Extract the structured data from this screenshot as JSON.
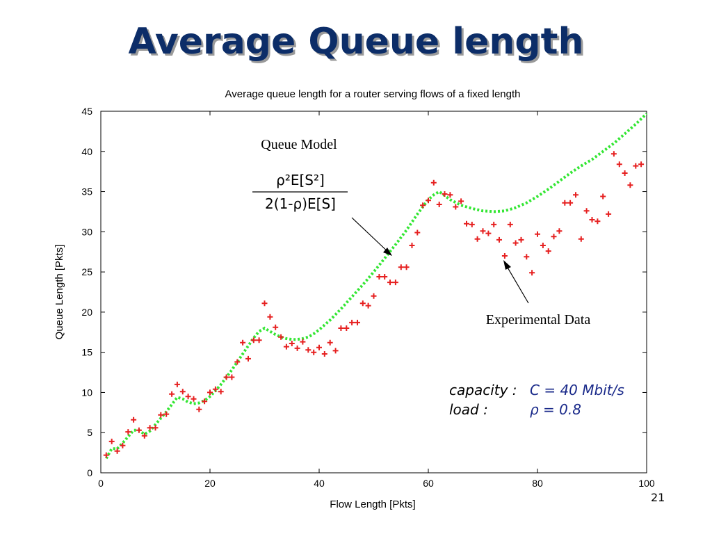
{
  "slide": {
    "title": "Average Queue length",
    "page_number": "21"
  },
  "annotations": {
    "model_label": "Queue Model",
    "formula_numerator": "ρ²E[S²]",
    "formula_denominator": "2(1-ρ)E[S]",
    "data_label": "Experimental Data",
    "capacity_label": "capacity :",
    "capacity_value": "C = 40 Mbit/s",
    "load_label": "load :",
    "load_value": "ρ = 0.8"
  },
  "colors": {
    "title": "#0c2d68",
    "model_line": "#33e633",
    "data_points": "#e62020",
    "math_value": "#1a2a8a"
  },
  "chart_data": {
    "type": "scatter",
    "title": "Average queue length for a router serving flows of a fixed length",
    "xlabel": "Flow Length [Pkts]",
    "ylabel": "Queue Length [Pkts]",
    "xlim": [
      0,
      100
    ],
    "ylim": [
      0,
      45
    ],
    "xticks": [
      0,
      20,
      40,
      60,
      80,
      100
    ],
    "yticks": [
      0,
      5,
      10,
      15,
      20,
      25,
      30,
      35,
      40,
      45
    ],
    "grid": false,
    "series": [
      {
        "style": "dotted-line",
        "x": [
          1,
          2,
          3,
          4,
          5,
          6,
          7,
          8,
          9,
          10,
          11,
          12,
          13,
          14,
          15,
          16,
          17,
          18,
          19,
          20,
          21,
          22,
          23,
          24,
          25,
          26,
          27,
          28,
          29,
          30,
          31,
          32,
          33,
          34,
          35,
          36,
          37,
          38,
          39,
          40,
          42,
          44,
          46,
          48,
          50,
          52,
          54,
          56,
          58,
          60,
          61,
          62,
          63,
          64,
          66,
          68,
          70,
          72,
          74,
          76,
          78,
          80,
          82,
          84,
          86,
          88,
          90,
          92,
          94,
          96,
          98,
          100
        ],
        "y": [
          1.8,
          3.0,
          3.0,
          3.7,
          4.5,
          5.3,
          5.3,
          4.8,
          5.2,
          6.0,
          6.8,
          7.6,
          8.5,
          9.4,
          9.2,
          8.8,
          8.6,
          8.7,
          9.0,
          9.5,
          10.2,
          11.0,
          11.9,
          12.8,
          13.8,
          14.8,
          15.8,
          16.8,
          17.6,
          18.0,
          17.6,
          17.2,
          16.9,
          16.7,
          16.6,
          16.6,
          16.7,
          16.9,
          17.3,
          17.8,
          19.0,
          20.4,
          21.9,
          23.4,
          25.0,
          26.7,
          28.4,
          30.2,
          32.2,
          34.0,
          34.6,
          35.0,
          34.5,
          34.0,
          33.3,
          32.9,
          32.6,
          32.5,
          32.6,
          33.0,
          33.6,
          34.4,
          35.3,
          36.3,
          37.3,
          38.2,
          39.0,
          40.0,
          41.0,
          42.2,
          43.4,
          44.7
        ]
      },
      {
        "style": "plus-markers",
        "x": [
          1,
          2,
          3,
          4,
          5,
          6,
          7,
          8,
          9,
          10,
          11,
          12,
          13,
          14,
          15,
          16,
          17,
          18,
          19,
          20,
          21,
          22,
          23,
          24,
          25,
          26,
          27,
          28,
          29,
          30,
          31,
          32,
          33,
          34,
          35,
          36,
          37,
          38,
          39,
          40,
          41,
          42,
          43,
          44,
          45,
          46,
          47,
          48,
          49,
          50,
          51,
          52,
          53,
          54,
          55,
          56,
          57,
          58,
          59,
          60,
          61,
          62,
          63,
          64,
          65,
          66,
          67,
          68,
          69,
          70,
          71,
          72,
          73,
          74,
          75,
          76,
          77,
          78,
          79,
          80,
          81,
          82,
          83,
          84,
          85,
          86,
          87,
          88,
          89,
          90,
          91,
          92,
          93,
          94,
          95,
          96,
          97,
          98,
          99
        ],
        "y": [
          2.2,
          3.9,
          2.7,
          3.4,
          5.1,
          6.6,
          5.3,
          4.6,
          5.6,
          5.6,
          7.2,
          7.3,
          9.8,
          11.0,
          10.1,
          9.5,
          9.2,
          7.9,
          8.9,
          10.0,
          10.4,
          10.1,
          11.9,
          11.9,
          13.8,
          16.2,
          14.2,
          16.5,
          16.5,
          21.1,
          19.4,
          18.1,
          16.9,
          15.7,
          16.1,
          15.5,
          16.3,
          15.3,
          15.0,
          15.6,
          14.8,
          16.2,
          15.2,
          18.0,
          18.0,
          18.7,
          18.7,
          21.1,
          20.8,
          22.0,
          24.4,
          24.4,
          23.7,
          23.7,
          25.6,
          25.6,
          28.3,
          29.9,
          33.3,
          33.9,
          36.1,
          33.4,
          34.7,
          34.6,
          33.1,
          33.8,
          31.0,
          30.9,
          29.1,
          30.1,
          29.8,
          30.9,
          29.0,
          27.0,
          30.9,
          28.6,
          29.0,
          26.9,
          24.9,
          29.7,
          28.3,
          27.6,
          29.4,
          30.1,
          33.6,
          33.6,
          34.6,
          29.1,
          32.6,
          31.5,
          31.3,
          34.4,
          32.2,
          39.7,
          38.4,
          37.3,
          35.8,
          38.2,
          38.4
        ]
      }
    ]
  }
}
